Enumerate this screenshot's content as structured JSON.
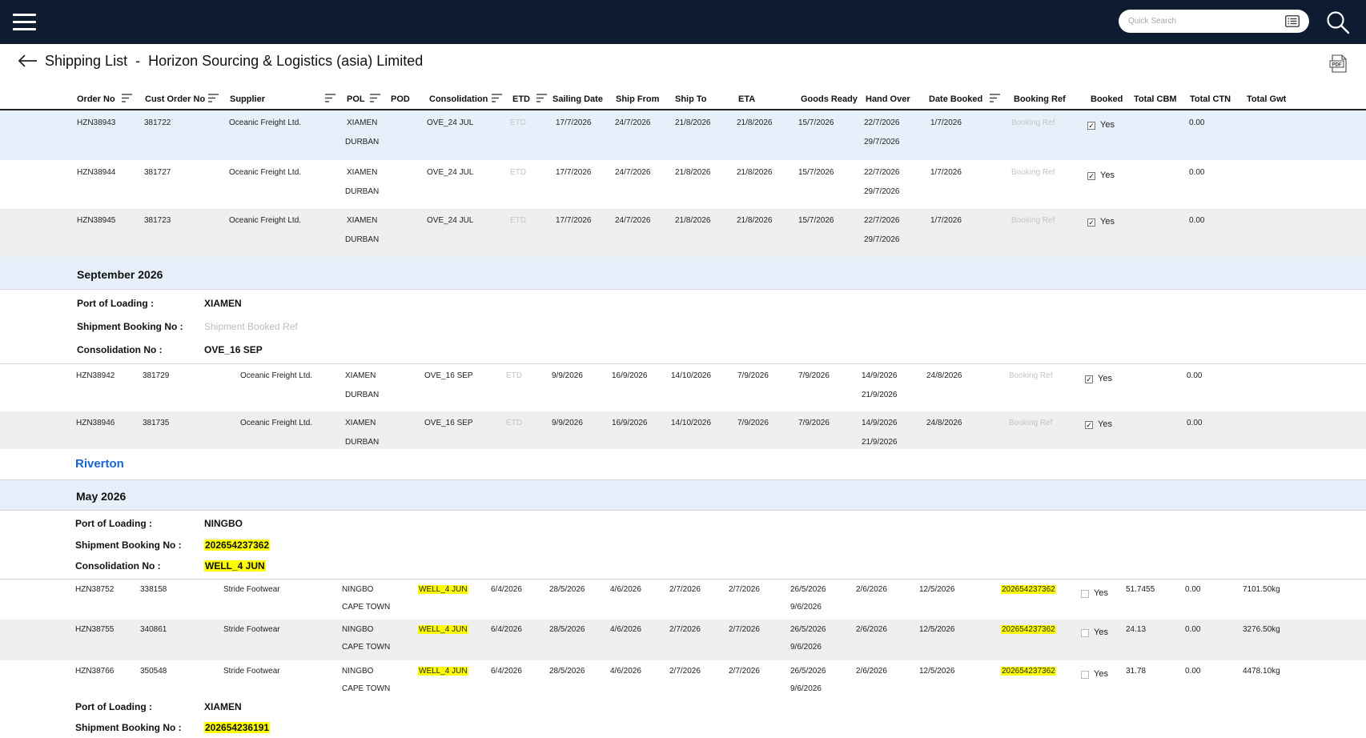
{
  "header": {
    "title": "Shipping List",
    "separator": "-",
    "company": "Horizon Sourcing & Logistics (asia) Limited",
    "search_placeholder": "Quick Search"
  },
  "columns": {
    "order_no": "Order No",
    "cust_order_no": "Cust Order No",
    "supplier": "Supplier",
    "pol": "POL",
    "pod": "POD",
    "consolidation": "Consolidation",
    "etd": "ETD",
    "sailing_date": "Sailing Date",
    "ship_from": "Ship From",
    "ship_to": "Ship To",
    "eta": "ETA",
    "goods_ready": "Goods Ready",
    "hand_over": "Hand Over",
    "date_booked": "Date Booked",
    "booking_ref": "Booking Ref",
    "booked": "Booked",
    "total_cbm": "Total CBM",
    "total_ctn": "Total CTN",
    "total_gwt": "Total Gwt"
  },
  "labels": {
    "port_of_loading": "Port of Loading :",
    "shipment_booking_no": "Shipment Booking  No :",
    "consolidation_no": "Consolidation No :",
    "shipment_booked_ref_placeholder": "Shipment Booked Ref",
    "etd_placeholder": "ETD",
    "booking_ref_placeholder": "Booking Ref",
    "yes": "Yes"
  },
  "group1_rows": [
    {
      "order_no": "HZN38943",
      "cust_order_no": "381722",
      "supplier": "Oceanic Freight Ltd.",
      "pol": "XIAMEN",
      "pod": "DURBAN",
      "consolidation": "OVE_24 JUL",
      "sailing_date": "17/7/2026",
      "ship_from": "24/7/2026",
      "ship_to": "21/8/2026",
      "eta": "21/8/2026",
      "goods_ready": "15/7/2026",
      "hand_over_1": "22/7/2026",
      "hand_over_2": "29/7/2026",
      "date_booked": "1/7/2026",
      "booked": true,
      "total_ctn": "0.00"
    },
    {
      "order_no": "HZN38944",
      "cust_order_no": "381727",
      "supplier": "Oceanic Freight Ltd.",
      "pol": "XIAMEN",
      "pod": "DURBAN",
      "consolidation": "OVE_24 JUL",
      "sailing_date": "17/7/2026",
      "ship_from": "24/7/2026",
      "ship_to": "21/8/2026",
      "eta": "21/8/2026",
      "goods_ready": "15/7/2026",
      "hand_over_1": "22/7/2026",
      "hand_over_2": "29/7/2026",
      "date_booked": "1/7/2026",
      "booked": true,
      "total_ctn": "0.00"
    },
    {
      "order_no": "HZN38945",
      "cust_order_no": "381723",
      "supplier": "Oceanic Freight Ltd.",
      "pol": "XIAMEN",
      "pod": "DURBAN",
      "consolidation": "OVE_24 JUL",
      "sailing_date": "17/7/2026",
      "ship_from": "24/7/2026",
      "ship_to": "21/8/2026",
      "eta": "21/8/2026",
      "goods_ready": "15/7/2026",
      "hand_over_1": "22/7/2026",
      "hand_over_2": "29/7/2026",
      "date_booked": "1/7/2026",
      "booked": true,
      "total_ctn": "0.00"
    }
  ],
  "september": {
    "title": "September 2026",
    "port_of_loading": "XIAMEN",
    "consolidation_no": "OVE_16 SEP",
    "rows": [
      {
        "order_no": "HZN38942",
        "cust_order_no": "381729",
        "supplier": "Oceanic Freight Ltd.",
        "pol": "XIAMEN",
        "pod": "DURBAN",
        "consolidation": "OVE_16 SEP",
        "sailing_date": "9/9/2026",
        "ship_from": "16/9/2026",
        "ship_to": "14/10/2026",
        "eta": "7/9/2026",
        "goods_ready": "7/9/2026",
        "hand_over_1": "14/9/2026",
        "hand_over_2": "21/9/2026",
        "date_booked": "24/8/2026",
        "booked": true,
        "total_ctn": "0.00"
      },
      {
        "order_no": "HZN38946",
        "cust_order_no": "381735",
        "supplier": "Oceanic Freight Ltd.",
        "pol": "XIAMEN",
        "pod": "DURBAN",
        "consolidation": "OVE_16 SEP",
        "sailing_date": "9/9/2026",
        "ship_from": "16/9/2026",
        "ship_to": "14/10/2026",
        "eta": "7/9/2026",
        "goods_ready": "7/9/2026",
        "hand_over_1": "14/9/2026",
        "hand_over_2": "21/9/2026",
        "date_booked": "24/8/2026",
        "booked": true,
        "total_ctn": "0.00"
      }
    ]
  },
  "riverton": {
    "title": "Riverton",
    "month": "May 2026",
    "port_of_loading": "NINGBO",
    "shipment_booking_no": "202654237362",
    "consolidation_no": "WELL_4 JUN",
    "rows": [
      {
        "order_no": "HZN38752",
        "cust_order_no": "338158",
        "supplier": "Stride Footwear",
        "pol": "NINGBO",
        "pod": "CAPE TOWN",
        "consolidation": "WELL_4 JUN",
        "etd": "6/4/2026",
        "sailing_date": "28/5/2026",
        "ship_from": "4/6/2026",
        "ship_to": "2/7/2026",
        "eta": "2/7/2026",
        "goods_ready_1": "26/5/2026",
        "goods_ready_2": "9/6/2026",
        "hand_over": "2/6/2026",
        "date_booked": "12/5/2026",
        "booking_ref": "202654237362",
        "booked": false,
        "total_cbm": "51.7455",
        "total_ctn": "0.00",
        "total_gwt": "7101.50kg"
      },
      {
        "order_no": "HZN38755",
        "cust_order_no": "340861",
        "supplier": "Stride Footwear",
        "pol": "NINGBO",
        "pod": "CAPE TOWN",
        "consolidation": "WELL_4 JUN",
        "etd": "6/4/2026",
        "sailing_date": "28/5/2026",
        "ship_from": "4/6/2026",
        "ship_to": "2/7/2026",
        "eta": "2/7/2026",
        "goods_ready_1": "26/5/2026",
        "goods_ready_2": "9/6/2026",
        "hand_over": "2/6/2026",
        "date_booked": "12/5/2026",
        "booking_ref": "202654237362",
        "booked": false,
        "total_cbm": "24.13",
        "total_ctn": "0.00",
        "total_gwt": "3276.50kg"
      },
      {
        "order_no": "HZN38766",
        "cust_order_no": "350548",
        "supplier": "Stride Footwear",
        "pol": "NINGBO",
        "pod": "CAPE TOWN",
        "consolidation": "WELL_4 JUN",
        "etd": "6/4/2026",
        "sailing_date": "28/5/2026",
        "ship_from": "4/6/2026",
        "ship_to": "2/7/2026",
        "eta": "2/7/2026",
        "goods_ready_1": "26/5/2026",
        "goods_ready_2": "9/6/2026",
        "hand_over": "2/6/2026",
        "date_booked": "12/5/2026",
        "booking_ref": "202654237362",
        "booked": false,
        "total_cbm": "31.78",
        "total_ctn": "0.00",
        "total_gwt": "4478.10kg"
      }
    ],
    "next_port_of_loading": "XIAMEN",
    "next_shipment_booking_no": "202654236191"
  }
}
